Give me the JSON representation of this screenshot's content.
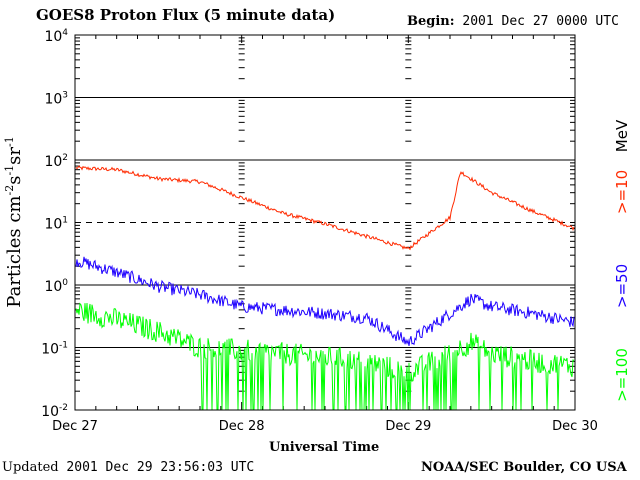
{
  "header": {
    "title": "GOES8 Proton Flux (5 minute data)",
    "begin_label": "Begin:",
    "begin_value": "2001 Dec 27 0000 UTC"
  },
  "footer": {
    "updated_label": "Updated",
    "updated_value": "2001 Dec 29 23:56:03 UTC",
    "credit": "NOAA/SEC Boulder, CO USA"
  },
  "colors": {
    "p10": "#ff2a00",
    "p50": "#1e00ff",
    "p100": "#00ff00",
    "axis": "#000000"
  },
  "chart_data": {
    "type": "line",
    "title": "GOES8 Proton Flux (5 minute data)",
    "xlabel": "Universal Time",
    "ylabel": "Particles cm⁻²s⁻¹sr⁻¹",
    "y_scale": "log",
    "ylim": [
      0.01,
      10000
    ],
    "xlim": [
      "2001-12-27T00:00",
      "2001-12-30T00:00"
    ],
    "x_ticks": [
      "Dec 27",
      "Dec 28",
      "Dec 29",
      "Dec 30"
    ],
    "y_ticks": [
      {
        "base": "10",
        "exp": "-2",
        "value": 0.01
      },
      {
        "base": "10",
        "exp": "-1",
        "value": 0.1
      },
      {
        "base": "10",
        "exp": "0",
        "value": 1
      },
      {
        "base": "10",
        "exp": "1",
        "value": 10
      },
      {
        "base": "10",
        "exp": "2",
        "value": 100
      },
      {
        "base": "10",
        "exp": "3",
        "value": 1000
      },
      {
        "base": "10",
        "exp": "4",
        "value": 10000
      }
    ],
    "grid": "horizontal lines at each decade; dashed line at 10",
    "legend_position": "right, vertical",
    "unit_label": "MeV",
    "series": [
      {
        "name": ">=10",
        "color": "#ff2a00",
        "points": [
          [
            "2001-12-27T00:00",
            75
          ],
          [
            "2001-12-27T06:00",
            70
          ],
          [
            "2001-12-27T12:00",
            50
          ],
          [
            "2001-12-27T18:00",
            45
          ],
          [
            "2001-12-28T00:00",
            25
          ],
          [
            "2001-12-28T06:00",
            14
          ],
          [
            "2001-12-28T12:00",
            9.5
          ],
          [
            "2001-12-28T18:00",
            6
          ],
          [
            "2001-12-29T00:00",
            3.8
          ],
          [
            "2001-12-29T06:00",
            12
          ],
          [
            "2001-12-29T07:30",
            65
          ],
          [
            "2001-12-29T12:00",
            30
          ],
          [
            "2001-12-29T18:00",
            15
          ],
          [
            "2001-12-30T00:00",
            8
          ]
        ]
      },
      {
        "name": ">=50",
        "color": "#1e00ff",
        "points": [
          [
            "2001-12-27T00:00",
            2.5
          ],
          [
            "2001-12-27T06:00",
            1.6
          ],
          [
            "2001-12-27T12:00",
            0.95
          ],
          [
            "2001-12-27T18:00",
            0.7
          ],
          [
            "2001-12-28T00:00",
            0.45
          ],
          [
            "2001-12-28T06:00",
            0.4
          ],
          [
            "2001-12-28T12:00",
            0.35
          ],
          [
            "2001-12-28T18:00",
            0.3
          ],
          [
            "2001-12-29T00:00",
            0.12
          ],
          [
            "2001-12-29T06:00",
            0.35
          ],
          [
            "2001-12-29T09:00",
            0.6
          ],
          [
            "2001-12-29T12:00",
            0.45
          ],
          [
            "2001-12-29T18:00",
            0.35
          ],
          [
            "2001-12-30T00:00",
            0.25
          ]
        ]
      },
      {
        "name": ">=100",
        "color": "#00ff00",
        "points": [
          [
            "2001-12-27T00:00",
            0.4
          ],
          [
            "2001-12-27T06:00",
            0.28
          ],
          [
            "2001-12-27T12:00",
            0.18
          ],
          [
            "2001-12-27T18:00",
            0.1
          ],
          [
            "2001-12-28T00:00",
            0.09
          ],
          [
            "2001-12-28T06:00",
            0.08
          ],
          [
            "2001-12-28T12:00",
            0.07
          ],
          [
            "2001-12-28T18:00",
            0.06
          ],
          [
            "2001-12-29T00:00",
            0.04
          ],
          [
            "2001-12-29T06:00",
            0.08
          ],
          [
            "2001-12-29T09:00",
            0.12
          ],
          [
            "2001-12-29T12:00",
            0.08
          ],
          [
            "2001-12-29T18:00",
            0.06
          ],
          [
            "2001-12-30T00:00",
            0.05
          ]
        ]
      }
    ]
  }
}
